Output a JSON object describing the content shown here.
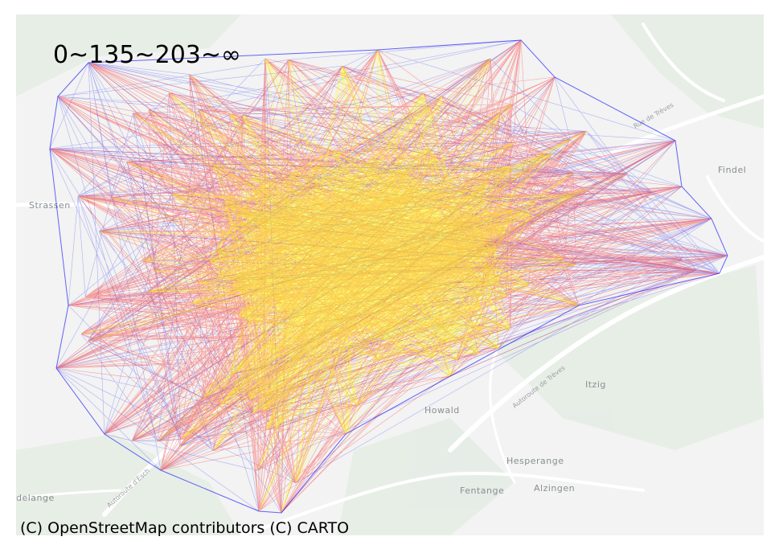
{
  "map": {
    "legend_text": "0~135~203~∞",
    "attribution": "(C) OpenStreetMap contributors (C) CARTO",
    "place_labels": [
      "Findel",
      "Strassen",
      "Itzig",
      "Howald",
      "Hesperange",
      "Fentange",
      "Alzingen",
      "delange"
    ],
    "road_labels": [
      "Autoroute d'Esch",
      "Autoroute de Trèves",
      "Rue de Trèves"
    ],
    "colors": {
      "basemap": "#f2f3f2",
      "green_area": "#e4ebe3",
      "road": "#ffffff",
      "edge_low": "#0000ff",
      "edge_mid": "#ff0000",
      "edge_high": "#ffff00"
    },
    "legend_thresholds": [
      0,
      135,
      203
    ]
  }
}
